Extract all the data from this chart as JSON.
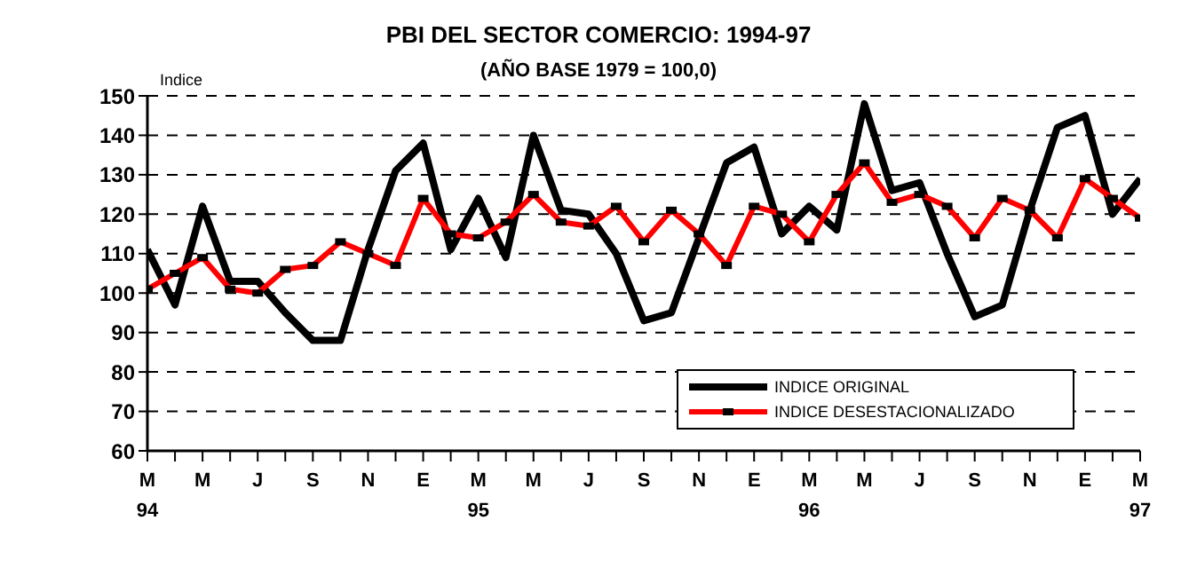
{
  "chart_data": {
    "type": "line",
    "title": "PBI DEL SECTOR COMERCIO: 1994-97",
    "subtitle": "(AÑO BASE 1979 = 100,0)",
    "ylabel": "Indice",
    "categories": [
      "M\n94",
      null,
      "M",
      null,
      "J",
      null,
      "S",
      null,
      "N",
      null,
      "E",
      null,
      "M\n95",
      null,
      "M",
      null,
      "J",
      null,
      "S",
      null,
      "N",
      null,
      "E",
      null,
      "M\n96",
      null,
      "M",
      null,
      "J",
      null,
      "S",
      null,
      "N",
      null,
      "E",
      null,
      "M\n97"
    ],
    "series": [
      {
        "name": "INDICE ORIGINAL",
        "color": "#000000",
        "marker": "none",
        "values": [
          111,
          97,
          122,
          103,
          103,
          95,
          88,
          88,
          111,
          131,
          138,
          111,
          124,
          109,
          140,
          121,
          120,
          110,
          93,
          95,
          114,
          133,
          137,
          115,
          122,
          116,
          148,
          126,
          128,
          110,
          94,
          97,
          121,
          142,
          145,
          120,
          129
        ]
      },
      {
        "name": "INDICE DESESTACIONALIZADO",
        "color": "#ff0000",
        "marker": "square",
        "values": [
          101,
          105,
          109,
          101,
          100,
          106,
          107,
          113,
          110,
          107,
          124,
          115,
          114,
          118,
          125,
          118,
          117,
          122,
          113,
          121,
          115,
          107,
          122,
          120,
          113,
          125,
          133,
          123,
          125,
          122,
          114,
          124,
          121,
          114,
          129,
          124,
          119
        ]
      }
    ],
    "ylim": [
      60,
      150
    ],
    "yticks": [
      60,
      70,
      80,
      90,
      100,
      110,
      120,
      130,
      140,
      150
    ],
    "grid": "y",
    "legend": "bottom right",
    "line_style": "solid"
  }
}
